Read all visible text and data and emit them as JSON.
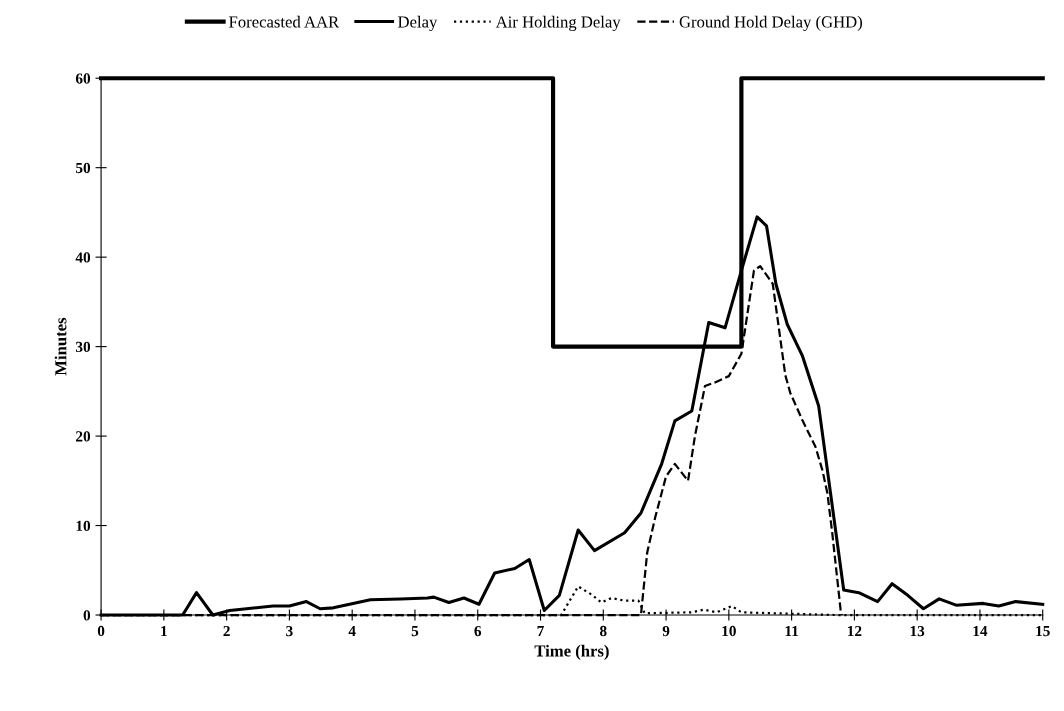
{
  "chart_data": {
    "type": "line",
    "xlabel": "Time (hrs)",
    "ylabel": "Minutes",
    "xlim": [
      0,
      15
    ],
    "ylim": [
      0,
      60
    ],
    "xticks": [
      0,
      1,
      2,
      3,
      4,
      5,
      6,
      7,
      8,
      9,
      10,
      11,
      12,
      13,
      14,
      15
    ],
    "yticks": [
      0,
      10,
      20,
      30,
      40,
      50,
      60
    ],
    "grid": false,
    "legend": "top",
    "marker": "none",
    "series": [
      {
        "name": "Forecasted AAR",
        "color": "#000000",
        "line_style": "solid",
        "x": [
          0,
          7.2,
          7.2,
          10.2,
          10.2,
          15
        ],
        "values": [
          60,
          60,
          30,
          30,
          60,
          60
        ]
      },
      {
        "name": "Delay",
        "color": "#000000",
        "line_style": "solid",
        "x": [
          0,
          1.3,
          1.52,
          1.78,
          2.05,
          2.74,
          3.0,
          3.27,
          3.49,
          3.7,
          4.29,
          4.77,
          5.2,
          5.3,
          5.54,
          5.78,
          6.02,
          6.27,
          6.59,
          6.82,
          7.06,
          7.3,
          7.6,
          7.86,
          8.34,
          8.6,
          8.93,
          9.14,
          9.41,
          9.68,
          9.94,
          10.2,
          10.45,
          10.6,
          10.75,
          10.93,
          11.17,
          11.43,
          11.83,
          12.07,
          12.37,
          12.6,
          12.85,
          13.1,
          13.35,
          13.62,
          14.05,
          14.3,
          14.57,
          15
        ],
        "values": [
          0,
          0,
          2.5,
          0,
          0.5,
          1.0,
          1.0,
          1.5,
          0.7,
          0.8,
          1.7,
          1.8,
          1.9,
          2.0,
          1.4,
          1.9,
          1.2,
          4.7,
          5.2,
          6.2,
          0.5,
          2.2,
          9.5,
          7.2,
          9.2,
          11.4,
          16.9,
          21.7,
          22.8,
          32.7,
          32.1,
          38.5,
          44.5,
          43.5,
          37,
          32.5,
          29,
          23.4,
          2.8,
          2.5,
          1.5,
          3.5,
          2.2,
          0.7,
          1.8,
          1.1,
          1.3,
          1.0,
          1.5,
          1.2
        ]
      },
      {
        "name": "Air Holding Delay",
        "color": "#000000",
        "line_style": "dotted",
        "x": [
          0,
          7.33,
          7.6,
          7.81,
          7.97,
          8.13,
          8.34,
          8.56,
          8.66,
          9.41,
          9.6,
          9.8,
          10.05,
          10.2,
          11.7,
          15
        ],
        "values": [
          0,
          0,
          3.2,
          2.3,
          1.4,
          1.9,
          1.6,
          1.6,
          0.2,
          0.3,
          0.6,
          0.3,
          1.0,
          0.3,
          0,
          0
        ]
      },
      {
        "name": "Ground Hold Delay (GHD)",
        "color": "#000000",
        "line_style": "dashed",
        "x": [
          0,
          8.6,
          8.7,
          8.83,
          9.0,
          9.14,
          9.35,
          9.46,
          9.62,
          9.78,
          10.0,
          10.2,
          10.4,
          10.5,
          10.7,
          10.9,
          10.98,
          11.17,
          11.38,
          11.49,
          11.57,
          11.65,
          11.78,
          11.8
        ],
        "values": [
          0,
          0,
          7,
          11,
          15.5,
          16.9,
          15.0,
          20.0,
          25.6,
          26.0,
          26.7,
          29.2,
          38.5,
          39,
          37,
          26.8,
          24.8,
          21.8,
          18.8,
          16.2,
          13.6,
          9.0,
          0.6,
          0
        ]
      }
    ]
  }
}
